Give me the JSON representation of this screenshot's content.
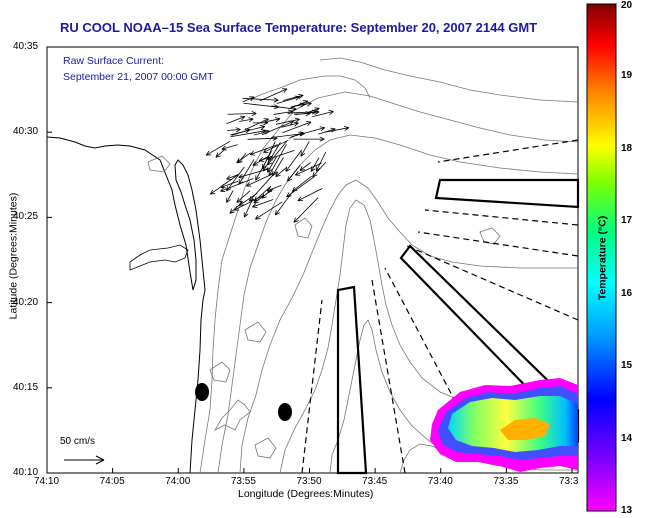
{
  "title": "RU COOL  NOAA–15  Sea Surface Temperature:  September 20, 2007 2144 GMT",
  "current_label": {
    "line1": "Raw Surface Current:",
    "line2": "September 21, 2007 00:00 GMT"
  },
  "x_axis": {
    "label": "Longitude (Degrees:Minutes)",
    "ticks": [
      "74:10",
      "74:05",
      "74:00",
      "73:55",
      "73:50",
      "73:45",
      "73:40",
      "73:35",
      "73:3"
    ]
  },
  "y_axis": {
    "label": "Latitude (Degrees:Minutes)",
    "ticks": [
      "40:35",
      "40:30",
      "40:25",
      "40:20",
      "40:15",
      "40:10"
    ]
  },
  "scale_arrow": {
    "label": "50 cm/s"
  },
  "colorbar": {
    "title": "Temperature (°C)",
    "ticks": [
      "20",
      "19",
      "18",
      "17",
      "16",
      "15",
      "14",
      "13"
    ],
    "colors": [
      "#ff00ff",
      "#0000ff",
      "#00b4ff",
      "#00ffd0",
      "#00ff40",
      "#ffff00",
      "#ff8000",
      "#ff0000",
      "#800000"
    ]
  }
}
